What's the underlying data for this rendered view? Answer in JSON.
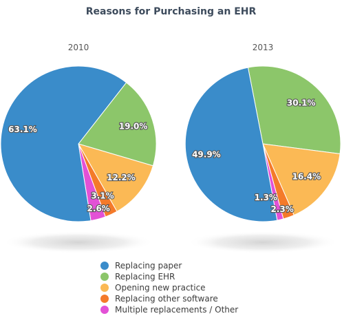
{
  "title": "Reasons for Purchasing an EHR",
  "chart_data": [
    {
      "type": "pie",
      "subtitle": "2010",
      "slices": [
        {
          "name": "Replacing paper",
          "value": 63.1,
          "label": "63.1%",
          "color": "#3a8cca"
        },
        {
          "name": "Replacing EHR",
          "value": 19.0,
          "label": "19.0%",
          "color": "#8cc66a"
        },
        {
          "name": "Opening new practice",
          "value": 12.2,
          "label": "12.2%",
          "color": "#fbb955"
        },
        {
          "name": "Replacing other software",
          "value": 2.6,
          "label": "2.6%",
          "color": "#f47a2a"
        },
        {
          "name": "Multiple replacements / Other",
          "value": 3.1,
          "label": "3.1%",
          "color": "#e351d6"
        }
      ]
    },
    {
      "type": "pie",
      "subtitle": "2013",
      "slices": [
        {
          "name": "Replacing paper",
          "value": 49.9,
          "label": "49.9%",
          "color": "#3a8cca"
        },
        {
          "name": "Replacing EHR",
          "value": 30.1,
          "label": "30.1%",
          "color": "#8cc66a"
        },
        {
          "name": "Opening new practice",
          "value": 16.4,
          "label": "16.4%",
          "color": "#fbb955"
        },
        {
          "name": "Replacing other software",
          "value": 2.3,
          "label": "2.3%",
          "color": "#f47a2a"
        },
        {
          "name": "Multiple replacements / Other",
          "value": 1.3,
          "label": "1.3%",
          "color": "#e351d6"
        }
      ]
    }
  ],
  "legend": {
    "placement": "bottom-center",
    "items": [
      {
        "label": "Replacing paper",
        "color": "#3a8cca"
      },
      {
        "label": "Replacing EHR",
        "color": "#8cc66a"
      },
      {
        "label": "Opening new practice",
        "color": "#fbb955"
      },
      {
        "label": "Replacing other software",
        "color": "#f47a2a"
      },
      {
        "label": "Multiple replacements / Other",
        "color": "#e351d6"
      }
    ]
  }
}
